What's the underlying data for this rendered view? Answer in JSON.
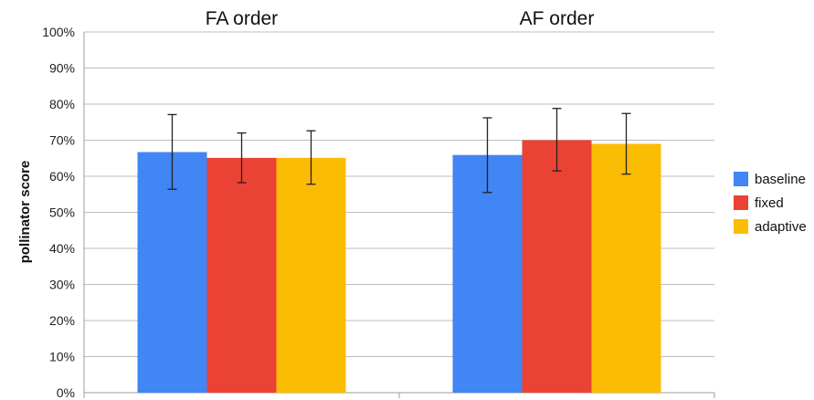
{
  "chart_data": {
    "type": "bar",
    "categories": [
      "FA order",
      "AF order"
    ],
    "ylabel": "pollinator score",
    "xlabel": "",
    "ylim": [
      0,
      100
    ],
    "yticks": [
      "0%",
      "10%",
      "20%",
      "30%",
      "40%",
      "50%",
      "60%",
      "70%",
      "80%",
      "90%",
      "100%"
    ],
    "grid": true,
    "legend_position": "right",
    "series": [
      {
        "name": "baseline",
        "color": "#4285f4",
        "values": [
          66.7,
          65.9
        ],
        "err_low": [
          56.4,
          55.5
        ],
        "err_high": [
          77.1,
          76.2
        ]
      },
      {
        "name": "fixed",
        "color": "#ea4335",
        "values": [
          65.1,
          70.0
        ],
        "err_low": [
          58.2,
          61.5
        ],
        "err_high": [
          72.0,
          78.8
        ]
      },
      {
        "name": "adaptive",
        "color": "#fbbc04",
        "values": [
          65.1,
          69.0
        ],
        "err_low": [
          57.8,
          60.6
        ],
        "err_high": [
          72.6,
          77.4
        ]
      }
    ]
  }
}
